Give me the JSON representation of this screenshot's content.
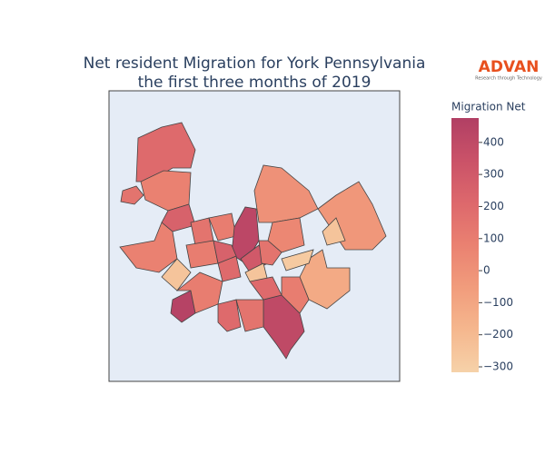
{
  "chart_data": {
    "type": "choropleth",
    "title": "Net resident Migration for York Pennsylvania",
    "subtitle": "the first three months of 2019",
    "colorbar_title": "Migration Net",
    "colorscale": [
      "#f6d2a9",
      "#f5b78e",
      "#f19c7c",
      "#ea8171",
      "#dd686c",
      "#ca5268",
      "#b13f64"
    ],
    "zlim": [
      -317,
      476
    ],
    "ticks": [
      {
        "value": -300,
        "label": "−300"
      },
      {
        "value": -200,
        "label": "−200"
      },
      {
        "value": -100,
        "label": "−100"
      },
      0,
      100,
      200,
      300,
      400
    ],
    "values": [
      200,
      150,
      80,
      250,
      80,
      -250,
      150,
      100,
      420,
      100,
      200,
      250,
      300,
      0,
      -30,
      -250,
      -120,
      -280,
      -250,
      50,
      150,
      450,
      100,
      200,
      400,
      200,
      100,
      150
    ]
  },
  "logo": {
    "text": "ADVAN",
    "tagline": "Research through Technology"
  }
}
